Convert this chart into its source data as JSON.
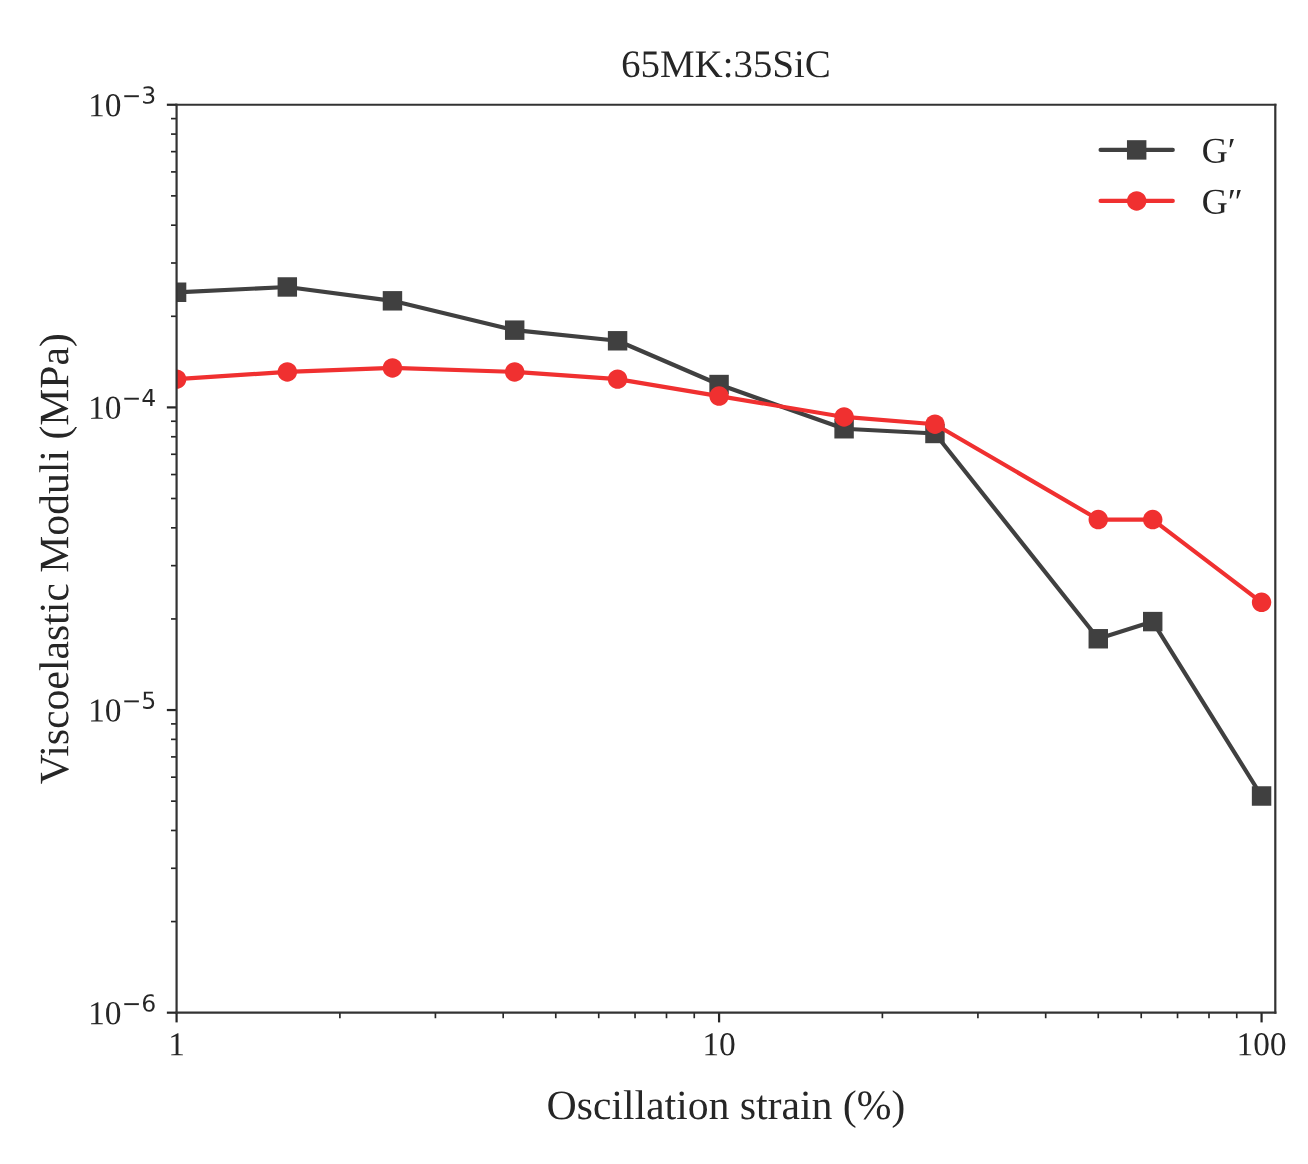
{
  "chart_data": {
    "type": "line",
    "title": "65MK:35SiC",
    "xlabel": "Oscillation strain (%)",
    "ylabel": "Viscoelastic Moduli (MPa)",
    "x": [
      1,
      1.6,
      2.5,
      4.2,
      6.5,
      10,
      17,
      25,
      50,
      63,
      100
    ],
    "series": [
      {
        "name": "G′",
        "color": "#404040",
        "marker": "square",
        "values": [
          0.00024,
          0.00025,
          0.000225,
          0.00018,
          0.000166,
          0.000119,
          8.5e-05,
          8.2e-05,
          1.72e-05,
          1.96e-05,
          5.2e-06
        ]
      },
      {
        "name": "G″",
        "color": "#f03030",
        "marker": "circle",
        "values": [
          0.000124,
          0.000131,
          0.000135,
          0.000131,
          0.000124,
          0.000109,
          9.3e-05,
          8.8e-05,
          4.26e-05,
          4.26e-05,
          2.27e-05
        ]
      }
    ],
    "log": "xy",
    "xlim": [
      1,
      106
    ],
    "xticks": [
      1,
      10,
      100
    ],
    "ylim": [
      1e-06,
      0.001
    ],
    "yticks": [
      {
        "value": 1e-06,
        "label": "10$^{−6}$"
      },
      {
        "value": 1e-05,
        "label": "10$^{−5}$"
      },
      {
        "value": 0.0001,
        "label": "10$^{−4}$"
      },
      {
        "value": 0.001,
        "label": "10$^{−3}$"
      }
    ],
    "grid": false,
    "legend": "top right",
    "line_style": "solid"
  }
}
